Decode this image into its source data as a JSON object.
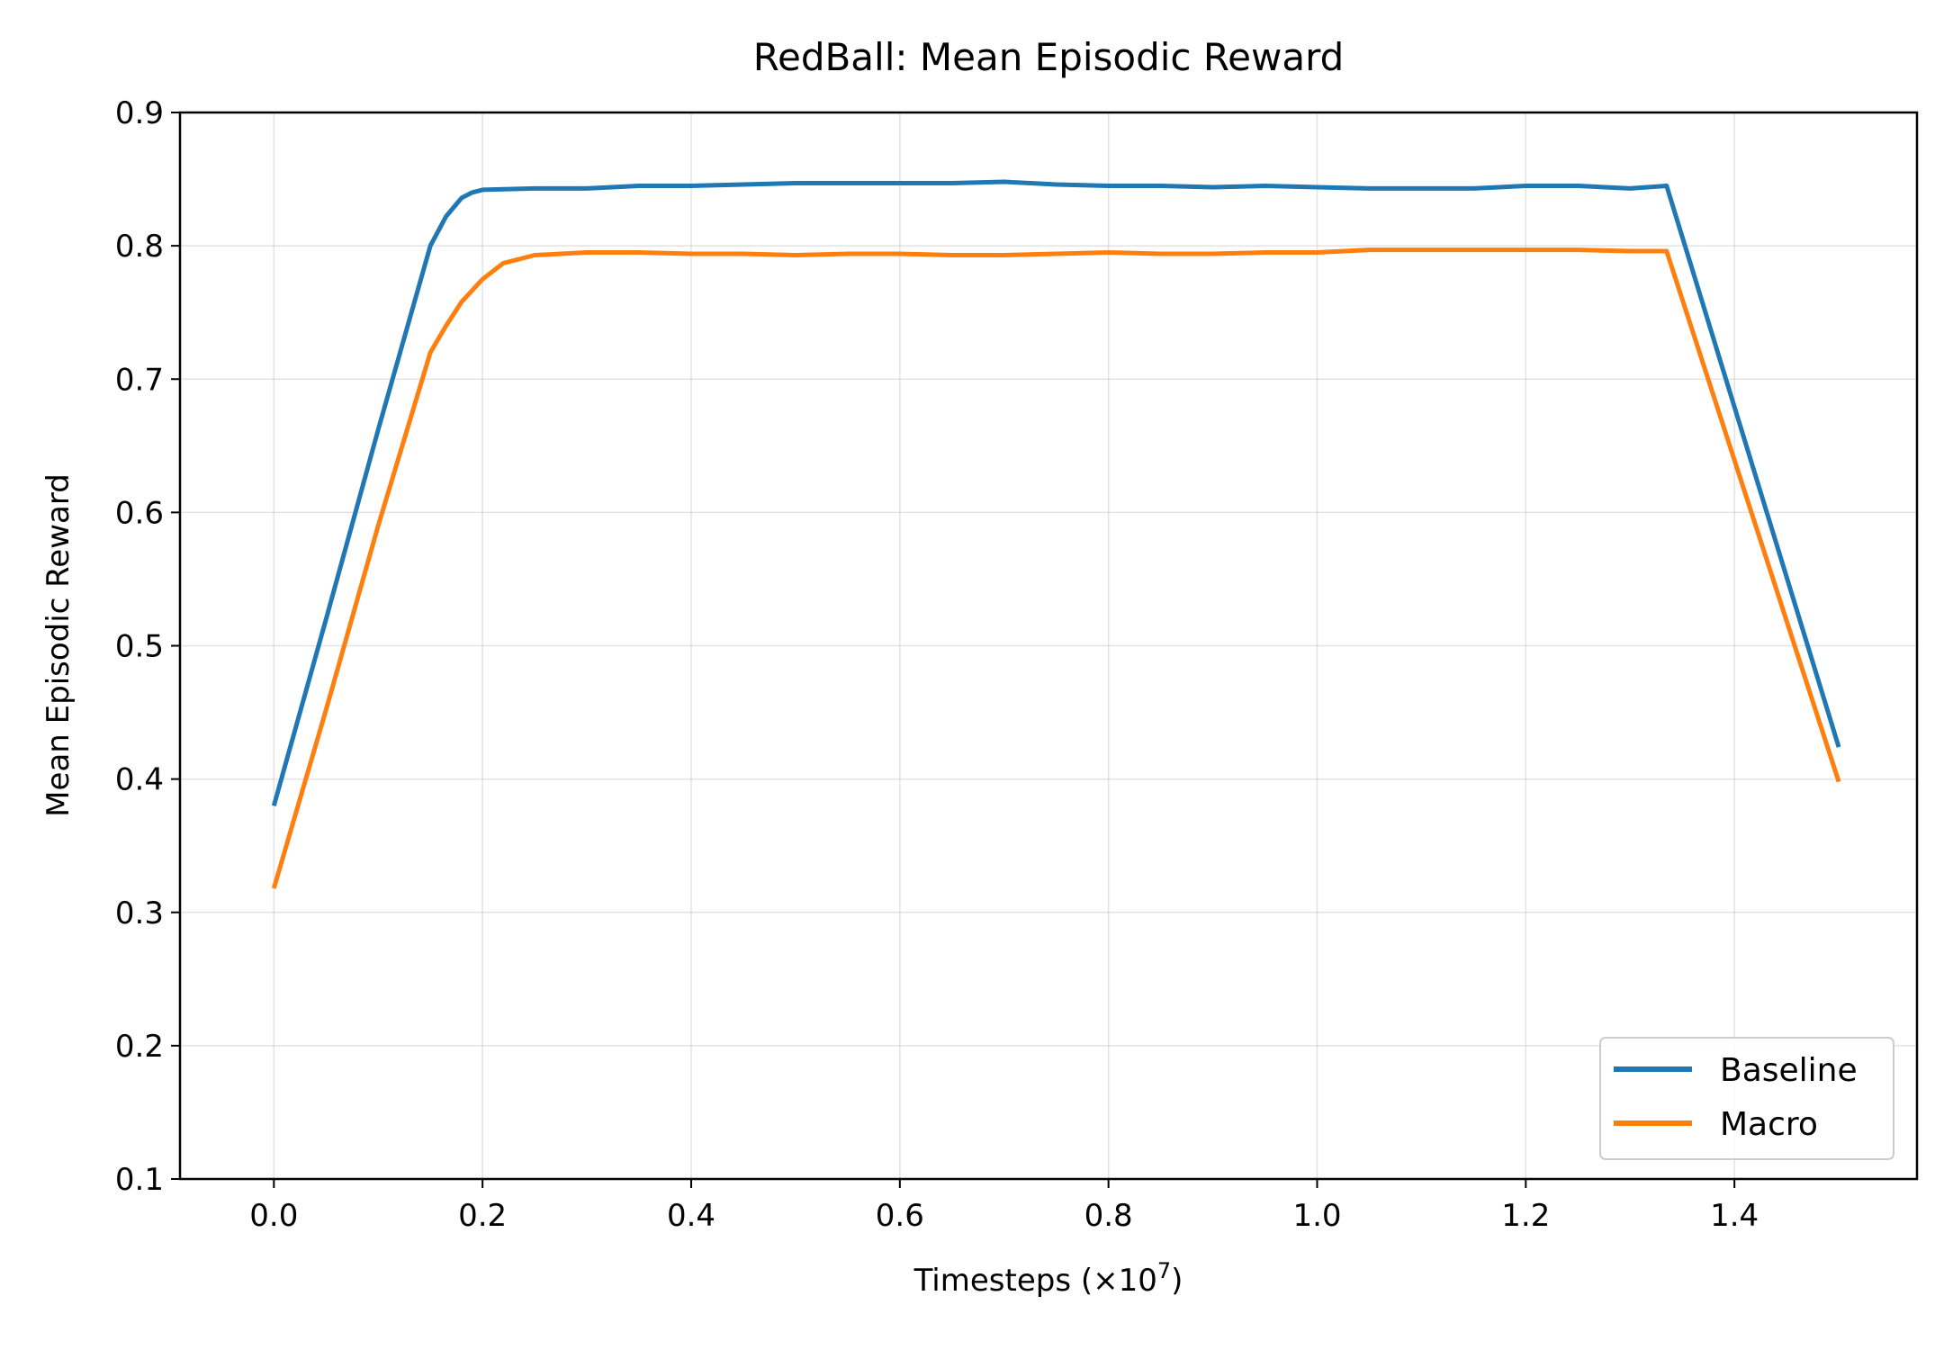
{
  "chart_data": {
    "type": "line",
    "title": "RedBall: Mean Episodic Reward",
    "xlabel": "Timesteps (×10",
    "xlabel_exponent": "7",
    "xlabel_close": ")",
    "ylabel": "Mean Episodic Reward",
    "xlim": [
      -0.09,
      1.575
    ],
    "ylim": [
      0.1,
      0.9
    ],
    "x_ticks": [
      0.0,
      0.2,
      0.4,
      0.6,
      0.8,
      1.0,
      1.2,
      1.4
    ],
    "x_tick_labels": [
      "0.0",
      "0.2",
      "0.4",
      "0.6",
      "0.8",
      "1.0",
      "1.2",
      "1.4"
    ],
    "y_ticks": [
      0.1,
      0.2,
      0.3,
      0.4,
      0.5,
      0.6,
      0.7,
      0.8,
      0.9
    ],
    "y_tick_labels": [
      "0.1",
      "0.2",
      "0.3",
      "0.4",
      "0.5",
      "0.6",
      "0.7",
      "0.8",
      "0.9"
    ],
    "grid": true,
    "legend_position": "lower-right",
    "series": [
      {
        "name": "Baseline",
        "color": "#1f77b4",
        "x": [
          0.0,
          0.05,
          0.1,
          0.15,
          0.165,
          0.18,
          0.19,
          0.2,
          0.25,
          0.3,
          0.35,
          0.4,
          0.45,
          0.5,
          0.55,
          0.6,
          0.65,
          0.7,
          0.75,
          0.8,
          0.85,
          0.9,
          0.95,
          1.0,
          1.05,
          1.1,
          1.15,
          1.2,
          1.25,
          1.3,
          1.335,
          1.5
        ],
        "y": [
          0.38,
          0.52,
          0.662,
          0.8,
          0.822,
          0.836,
          0.84,
          0.842,
          0.843,
          0.843,
          0.845,
          0.845,
          0.846,
          0.847,
          0.847,
          0.847,
          0.847,
          0.848,
          0.846,
          0.845,
          0.845,
          0.844,
          0.845,
          0.844,
          0.843,
          0.843,
          0.843,
          0.845,
          0.845,
          0.843,
          0.845,
          0.424
        ]
      },
      {
        "name": "Macro",
        "color": "#ff7f0e",
        "x": [
          0.0,
          0.05,
          0.1,
          0.15,
          0.165,
          0.18,
          0.2,
          0.22,
          0.25,
          0.3,
          0.35,
          0.4,
          0.45,
          0.5,
          0.55,
          0.6,
          0.65,
          0.7,
          0.75,
          0.8,
          0.85,
          0.9,
          0.95,
          1.0,
          1.05,
          1.1,
          1.15,
          1.2,
          1.25,
          1.3,
          1.335,
          1.5
        ],
        "y": [
          0.318,
          0.452,
          0.59,
          0.72,
          0.74,
          0.758,
          0.775,
          0.787,
          0.793,
          0.795,
          0.795,
          0.794,
          0.794,
          0.793,
          0.794,
          0.794,
          0.793,
          0.793,
          0.794,
          0.795,
          0.794,
          0.794,
          0.795,
          0.795,
          0.797,
          0.797,
          0.797,
          0.797,
          0.797,
          0.796,
          0.796,
          0.398
        ]
      }
    ]
  }
}
